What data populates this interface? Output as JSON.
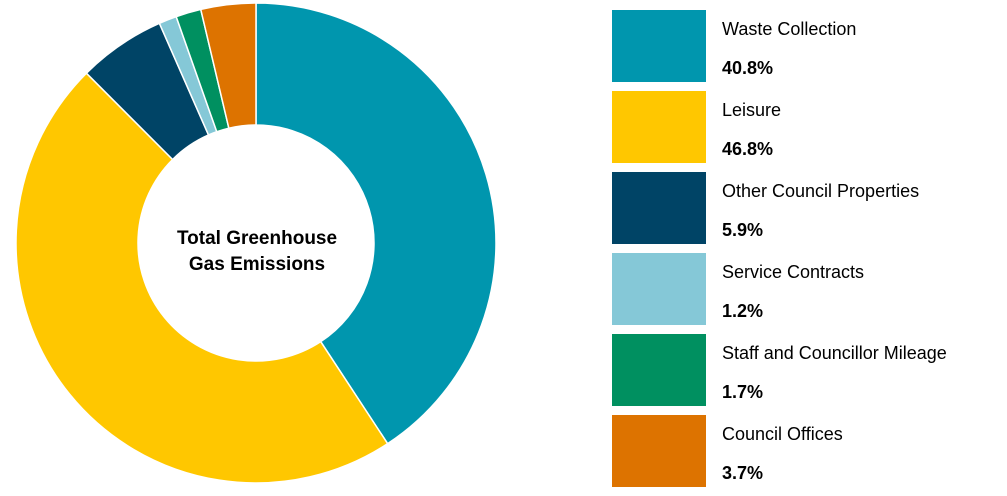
{
  "chart_data": {
    "type": "pie",
    "center_label_lines": [
      "Total Greenhouse",
      "Gas Emissions"
    ],
    "slices": [
      {
        "name": "Waste Collection",
        "value": 40.8,
        "label": "40.8%",
        "color": "#0096AE"
      },
      {
        "name": "Leisure",
        "value": 46.8,
        "label": "46.8%",
        "color": "#FFC700"
      },
      {
        "name": "Other Council Properties",
        "value": 5.9,
        "label": "5.9%",
        "color": "#004466"
      },
      {
        "name": "Service Contracts",
        "value": 1.2,
        "label": "1.2%",
        "color": "#85C8D7"
      },
      {
        "name": "Staff and Councillor Mileage",
        "value": 1.7,
        "label": "1.7%",
        "color": "#009060"
      },
      {
        "name": "Council Offices",
        "value": 3.7,
        "label": "3.7%",
        "color": "#DD7300"
      }
    ],
    "legend_position": "right"
  }
}
